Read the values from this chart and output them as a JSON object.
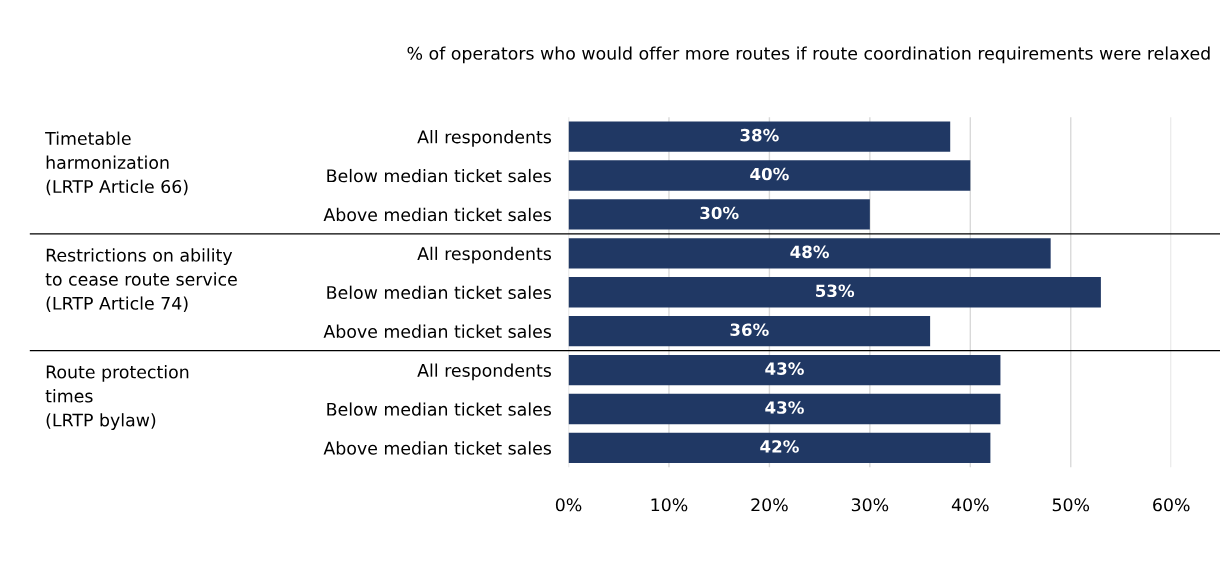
{
  "chart_data": {
    "type": "bar",
    "orientation": "horizontal",
    "title": "% of operators who would offer more routes if route coordination requirements were relaxed",
    "categories": [
      "All respondents",
      "Below median ticket sales",
      "Above median ticket sales",
      "All respondents",
      "Below median ticket sales",
      "Above median ticket sales",
      "All respondents",
      "Below median ticket sales",
      "Above median ticket sales"
    ],
    "values": [
      38,
      40,
      30,
      48,
      53,
      36,
      43,
      43,
      42
    ],
    "color": "#203864",
    "value_labels": [
      "38%",
      "40%",
      "30%",
      "48%",
      "53%",
      "36%",
      "43%",
      "43%",
      "42%"
    ],
    "xlim": [
      0,
      60
    ],
    "xticks": [
      {
        "value": 0,
        "label": "0%"
      },
      {
        "value": 10,
        "label": "10%"
      },
      {
        "value": 20,
        "label": "20%"
      },
      {
        "value": 30,
        "label": "30%"
      },
      {
        "value": 40,
        "label": "40%"
      },
      {
        "value": 50,
        "label": "50%"
      },
      {
        "value": 60,
        "label": "60%"
      }
    ],
    "grid": "x",
    "annotations": [
      "Timetable\nharmonization\n(LRTP Article 66)",
      "Restrictions on ability\nto cease route service\n(LRTP Article 74)",
      "Route protection\ntimes\n(LRTP bylaw)"
    ]
  }
}
